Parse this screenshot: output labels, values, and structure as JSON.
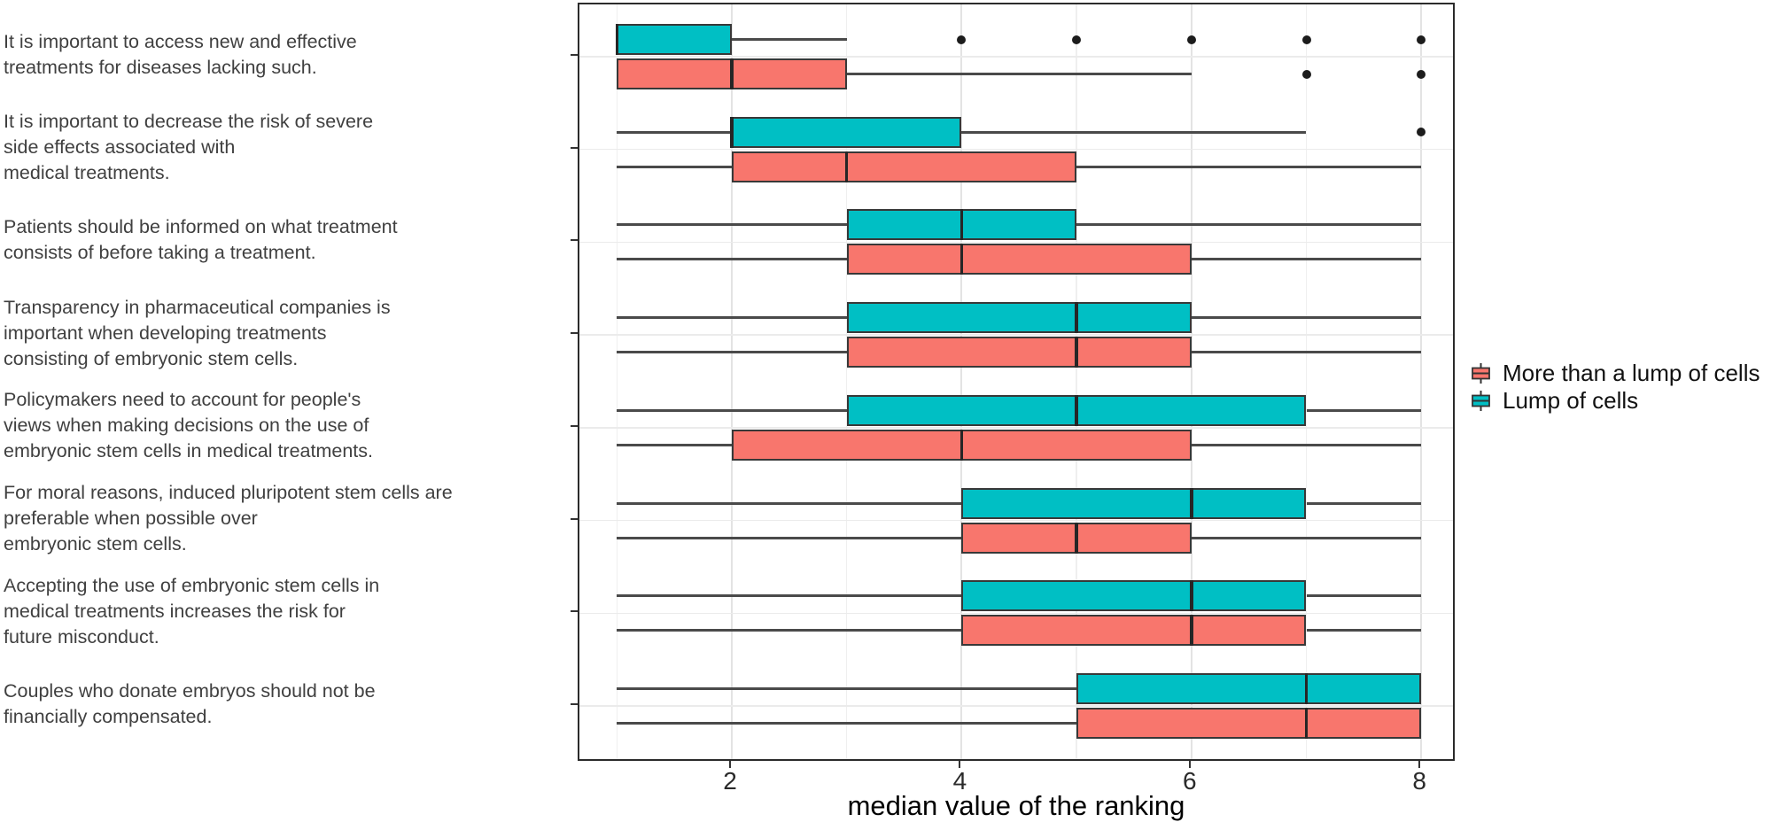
{
  "chart_data": {
    "type": "boxplot",
    "orientation": "horizontal",
    "xlabel": "median value of the ranking",
    "xlim": [
      0.67,
      8.31
    ],
    "x_major_ticks": [
      2,
      4,
      6,
      8
    ],
    "x_gridlines_major": [
      2,
      4,
      6,
      8
    ],
    "x_gridlines_minor": [
      1,
      3,
      5,
      7
    ],
    "grid": true,
    "legend_position": "right",
    "legend": [
      {
        "label": "More than a lump of cells",
        "color": "#F8766D"
      },
      {
        "label": "Lump of cells",
        "color": "#00BFC4"
      }
    ],
    "categories": [
      {
        "label_lines": [
          "It is important to access new and effective",
          "treatments for diseases lacking such."
        ]
      },
      {
        "label_lines": [
          "It is important to decrease the risk of severe",
          "side effects associated with",
          "medical treatments."
        ]
      },
      {
        "label_lines": [
          "Patients should be informed on what treatment",
          "consists of before taking a treatment."
        ]
      },
      {
        "label_lines": [
          "Transparency in pharmaceutical companies is",
          "important when developing treatments",
          "consisting of embryonic stem cells."
        ]
      },
      {
        "label_lines": [
          "Policymakers need to account for people's",
          "views when making decisions on the use of",
          "embryonic stem cells in medical treatments."
        ]
      },
      {
        "label_lines": [
          "For moral reasons, induced pluripotent stem cells are",
          "preferable when possible over",
          "embryonic stem cells."
        ]
      },
      {
        "label_lines": [
          "Accepting the use of embryonic stem cells in",
          "medical treatments increases the risk for",
          "future misconduct."
        ]
      },
      {
        "label_lines": [
          "Couples who donate embryos should not be",
          "financially compensated."
        ]
      }
    ],
    "series": [
      {
        "name": "Lump of cells",
        "color": "#00BFC4",
        "row": "top",
        "stats": [
          {
            "min": 1,
            "q1": 1,
            "median": 1,
            "q3": 2,
            "max": 3,
            "outliers": [
              4,
              5,
              6,
              7,
              8
            ]
          },
          {
            "min": 1,
            "q1": 2,
            "median": 2,
            "q3": 4,
            "max": 7,
            "outliers": [
              8
            ]
          },
          {
            "min": 1,
            "q1": 3,
            "median": 4,
            "q3": 5,
            "max": 8,
            "outliers": []
          },
          {
            "min": 1,
            "q1": 3,
            "median": 5,
            "q3": 6,
            "max": 8,
            "outliers": []
          },
          {
            "min": 1,
            "q1": 3,
            "median": 5,
            "q3": 7,
            "max": 8,
            "outliers": []
          },
          {
            "min": 1,
            "q1": 4,
            "median": 6,
            "q3": 7,
            "max": 8,
            "outliers": []
          },
          {
            "min": 1,
            "q1": 4,
            "median": 6,
            "q3": 7,
            "max": 8,
            "outliers": []
          },
          {
            "min": 1,
            "q1": 5,
            "median": 7,
            "q3": 8,
            "max": 8,
            "outliers": []
          }
        ]
      },
      {
        "name": "More than a lump of cells",
        "color": "#F8766D",
        "row": "bottom",
        "stats": [
          {
            "min": 1,
            "q1": 1,
            "median": 2,
            "q3": 3,
            "max": 6,
            "outliers": [
              7,
              8
            ]
          },
          {
            "min": 1,
            "q1": 2,
            "median": 3,
            "q3": 5,
            "max": 8,
            "outliers": []
          },
          {
            "min": 1,
            "q1": 3,
            "median": 4,
            "q3": 6,
            "max": 8,
            "outliers": []
          },
          {
            "min": 1,
            "q1": 3,
            "median": 5,
            "q3": 6,
            "max": 8,
            "outliers": []
          },
          {
            "min": 1,
            "q1": 2,
            "median": 4,
            "q3": 6,
            "max": 8,
            "outliers": []
          },
          {
            "min": 1,
            "q1": 4,
            "median": 5,
            "q3": 6,
            "max": 8,
            "outliers": []
          },
          {
            "min": 1,
            "q1": 4,
            "median": 6,
            "q3": 7,
            "max": 8,
            "outliers": []
          },
          {
            "min": 1,
            "q1": 5,
            "median": 7,
            "q3": 8,
            "max": 8,
            "outliers": []
          }
        ]
      }
    ]
  }
}
